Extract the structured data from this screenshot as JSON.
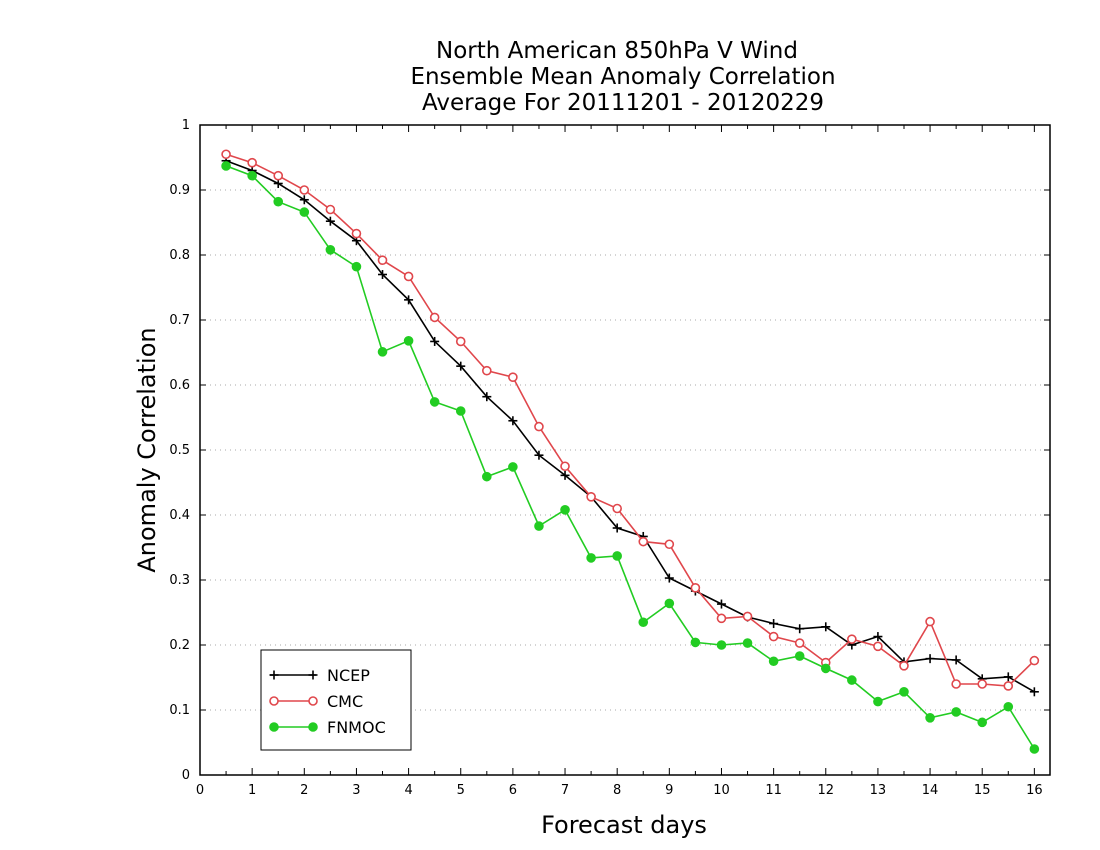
{
  "chart_data": {
    "type": "line",
    "title": [
      "North American 850hPa V Wind",
      "Ensemble Mean Anomaly Correlation",
      "Average For 20111201 - 20120229"
    ],
    "xlabel": "Forecast days",
    "ylabel": "Anomaly Correlation",
    "xlim": [
      0,
      16.3
    ],
    "ylim": [
      0,
      1
    ],
    "xticks": [
      0,
      1,
      2,
      3,
      4,
      5,
      6,
      7,
      8,
      9,
      10,
      11,
      12,
      13,
      14,
      15,
      16
    ],
    "yticks": [
      0,
      0.1,
      0.2,
      0.3,
      0.4,
      0.5,
      0.6,
      0.7,
      0.8,
      0.9,
      1
    ],
    "ytick_labels": [
      "0",
      "0.1",
      "0.2",
      "0.3",
      "0.4",
      "0.5",
      "0.6",
      "0.7",
      "0.8",
      "0.9",
      "1"
    ],
    "grid": "horizontal-dotted",
    "legend": "bottom-left",
    "x": [
      0.5,
      1.0,
      1.5,
      2.0,
      2.5,
      3.0,
      3.5,
      4.0,
      4.5,
      5.0,
      5.5,
      6.0,
      6.5,
      7.0,
      7.5,
      8.0,
      8.5,
      9.0,
      9.5,
      10.0,
      10.5,
      11.0,
      11.5,
      12.0,
      12.5,
      13.0,
      13.5,
      14.0,
      14.5,
      15.0,
      15.5,
      16.0
    ],
    "series": [
      {
        "name": "NCEP",
        "color": "#000000",
        "marker": "plus",
        "values": [
          0.945,
          0.93,
          0.91,
          0.885,
          0.852,
          0.822,
          0.77,
          0.731,
          0.667,
          0.629,
          0.582,
          0.545,
          0.492,
          0.461,
          0.428,
          0.38,
          0.367,
          0.303,
          0.283,
          0.263,
          0.243,
          0.233,
          0.225,
          0.228,
          0.2,
          0.213,
          0.174,
          0.179,
          0.177,
          0.148,
          0.151,
          0.128
        ]
      },
      {
        "name": "CMC",
        "color": "#e0474c",
        "marker": "open-circle",
        "values": [
          0.955,
          0.942,
          0.922,
          0.9,
          0.87,
          0.833,
          0.792,
          0.767,
          0.704,
          0.667,
          0.622,
          0.612,
          0.536,
          0.475,
          0.428,
          0.41,
          0.359,
          0.355,
          0.288,
          0.241,
          0.244,
          0.213,
          0.203,
          0.173,
          0.209,
          0.198,
          0.168,
          0.236,
          0.14,
          0.14,
          0.137,
          0.176
        ]
      },
      {
        "name": "FNMOC",
        "color": "#22cc22",
        "marker": "filled-circle",
        "values": [
          0.937,
          0.922,
          0.882,
          0.866,
          0.808,
          0.782,
          0.651,
          0.668,
          0.574,
          0.56,
          0.459,
          0.474,
          0.383,
          0.408,
          0.334,
          0.337,
          0.235,
          0.264,
          0.204,
          0.2,
          0.203,
          0.175,
          0.183,
          0.164,
          0.146,
          0.113,
          0.128,
          0.088,
          0.097,
          0.081,
          0.105,
          0.04
        ]
      }
    ]
  }
}
